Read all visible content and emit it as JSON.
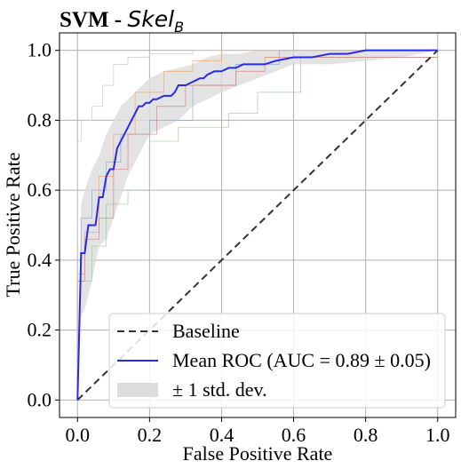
{
  "chart_data": {
    "type": "line",
    "title_prefix": "SVM - ",
    "title_math_main": "Skel",
    "title_math_sub": "B",
    "xlabel": "False Positive Rate",
    "ylabel": "True Positive Rate",
    "xlim": [
      -0.05,
      1.05
    ],
    "ylim": [
      -0.05,
      1.05
    ],
    "xticks": [
      0.0,
      0.2,
      0.4,
      0.6,
      0.8,
      1.0
    ],
    "yticks": [
      0.0,
      0.2,
      0.4,
      0.6,
      0.8,
      1.0
    ],
    "grid": true,
    "legend_position": "bottom-right",
    "colors": {
      "mean": "#2a2ae6",
      "baseline": "#333333",
      "band": "#dcdcdc",
      "fold1": "#7aa6d8",
      "fold2": "#f0a060",
      "fold3": "#8fd08f",
      "fold4": "#e07a7a",
      "fold5": "#c8c8c8"
    },
    "legend": [
      {
        "label": "Baseline",
        "style": "dashed"
      },
      {
        "label": "Mean ROC (AUC = 0.89 ± 0.05)",
        "style": "solid"
      },
      {
        "label": "± 1 std. dev.",
        "style": "band"
      }
    ],
    "baseline": {
      "x": [
        0,
        1
      ],
      "y": [
        0,
        1
      ]
    },
    "mean_roc": {
      "x": [
        0.0,
        0.01,
        0.02,
        0.03,
        0.04,
        0.05,
        0.06,
        0.07,
        0.08,
        0.09,
        0.1,
        0.11,
        0.12,
        0.13,
        0.14,
        0.15,
        0.16,
        0.17,
        0.18,
        0.19,
        0.2,
        0.21,
        0.22,
        0.24,
        0.26,
        0.27,
        0.28,
        0.3,
        0.32,
        0.34,
        0.35,
        0.36,
        0.38,
        0.4,
        0.42,
        0.44,
        0.46,
        0.48,
        0.5,
        0.52,
        0.55,
        0.6,
        0.65,
        0.7,
        0.75,
        0.8,
        0.9,
        0.98,
        1.0
      ],
      "y": [
        0.0,
        0.42,
        0.42,
        0.5,
        0.5,
        0.5,
        0.58,
        0.58,
        0.64,
        0.66,
        0.66,
        0.72,
        0.74,
        0.76,
        0.78,
        0.8,
        0.82,
        0.84,
        0.84,
        0.85,
        0.85,
        0.86,
        0.86,
        0.87,
        0.87,
        0.88,
        0.9,
        0.9,
        0.91,
        0.92,
        0.92,
        0.93,
        0.94,
        0.94,
        0.95,
        0.95,
        0.96,
        0.96,
        0.96,
        0.96,
        0.97,
        0.98,
        0.98,
        0.99,
        0.99,
        1.0,
        1.0,
        1.0,
        1.0
      ]
    },
    "band_upper": {
      "x": [
        0.0,
        0.01,
        0.02,
        0.04,
        0.06,
        0.08,
        0.1,
        0.12,
        0.14,
        0.16,
        0.18,
        0.2,
        0.24,
        0.28,
        0.32,
        0.36,
        0.4,
        0.45,
        0.5,
        0.6,
        0.7,
        0.8,
        0.9,
        1.0
      ],
      "y": [
        0.0,
        0.56,
        0.6,
        0.66,
        0.7,
        0.76,
        0.8,
        0.84,
        0.86,
        0.88,
        0.9,
        0.92,
        0.94,
        0.95,
        0.96,
        0.98,
        0.99,
        0.99,
        1.0,
        1.0,
        1.0,
        1.0,
        1.0,
        1.0
      ]
    },
    "band_lower": {
      "x": [
        0.0,
        0.01,
        0.02,
        0.04,
        0.06,
        0.08,
        0.1,
        0.12,
        0.14,
        0.16,
        0.18,
        0.2,
        0.24,
        0.28,
        0.32,
        0.36,
        0.4,
        0.45,
        0.5,
        0.6,
        0.7,
        0.8,
        0.9,
        1.0
      ],
      "y": [
        0.0,
        0.24,
        0.26,
        0.34,
        0.44,
        0.46,
        0.52,
        0.58,
        0.64,
        0.68,
        0.72,
        0.76,
        0.78,
        0.8,
        0.84,
        0.86,
        0.88,
        0.9,
        0.92,
        0.96,
        0.96,
        0.97,
        0.98,
        1.0
      ]
    },
    "folds": [
      {
        "x": [
          0.0,
          0.0,
          0.01,
          0.01,
          0.04,
          0.04,
          0.08,
          0.08,
          0.12,
          0.12,
          0.2,
          0.2,
          0.32,
          0.32,
          0.44,
          0.44,
          0.56,
          0.56,
          1.0
        ],
        "y": [
          0.0,
          0.4,
          0.4,
          0.52,
          0.52,
          0.6,
          0.6,
          0.68,
          0.68,
          0.76,
          0.76,
          0.8,
          0.8,
          0.9,
          0.9,
          0.96,
          0.96,
          1.0,
          1.0
        ]
      },
      {
        "x": [
          0.0,
          0.0,
          0.02,
          0.02,
          0.06,
          0.06,
          0.1,
          0.1,
          0.16,
          0.16,
          0.24,
          0.24,
          0.32,
          0.32,
          0.4,
          0.4,
          1.0
        ],
        "y": [
          0.0,
          0.36,
          0.36,
          0.48,
          0.48,
          0.64,
          0.64,
          0.76,
          0.76,
          0.88,
          0.88,
          0.94,
          0.94,
          0.97,
          0.97,
          1.0,
          1.0
        ]
      },
      {
        "x": [
          0.0,
          0.0,
          0.04,
          0.04,
          0.08,
          0.08,
          0.14,
          0.14,
          0.2,
          0.2,
          0.28,
          0.28,
          0.42,
          0.42,
          0.5,
          0.5,
          0.62,
          0.62,
          1.0
        ],
        "y": [
          0.0,
          0.34,
          0.34,
          0.44,
          0.44,
          0.56,
          0.56,
          0.6,
          0.6,
          0.74,
          0.74,
          0.78,
          0.78,
          0.82,
          0.82,
          0.88,
          0.88,
          0.98,
          0.98
        ]
      },
      {
        "x": [
          0.0,
          0.0,
          0.02,
          0.02,
          0.06,
          0.06,
          0.1,
          0.1,
          0.14,
          0.14,
          0.22,
          0.22,
          0.3,
          0.3,
          0.44,
          0.44,
          0.52,
          0.52,
          1.0
        ],
        "y": [
          0.0,
          0.34,
          0.34,
          0.46,
          0.46,
          0.52,
          0.52,
          0.66,
          0.66,
          0.76,
          0.76,
          0.84,
          0.84,
          0.9,
          0.9,
          0.94,
          0.94,
          0.98,
          0.98
        ]
      },
      {
        "x": [
          0.0,
          0.0,
          0.01,
          0.01,
          0.04,
          0.04,
          0.07,
          0.07,
          0.1,
          0.1,
          0.14,
          0.14,
          0.2,
          0.2,
          0.32,
          0.32,
          0.6,
          0.6,
          1.0
        ],
        "y": [
          0.0,
          0.74,
          0.74,
          0.8,
          0.8,
          0.84,
          0.84,
          0.9,
          0.9,
          0.96,
          0.96,
          0.98,
          0.98,
          0.99,
          0.99,
          1.0,
          1.0,
          1.0,
          1.0
        ]
      }
    ]
  }
}
